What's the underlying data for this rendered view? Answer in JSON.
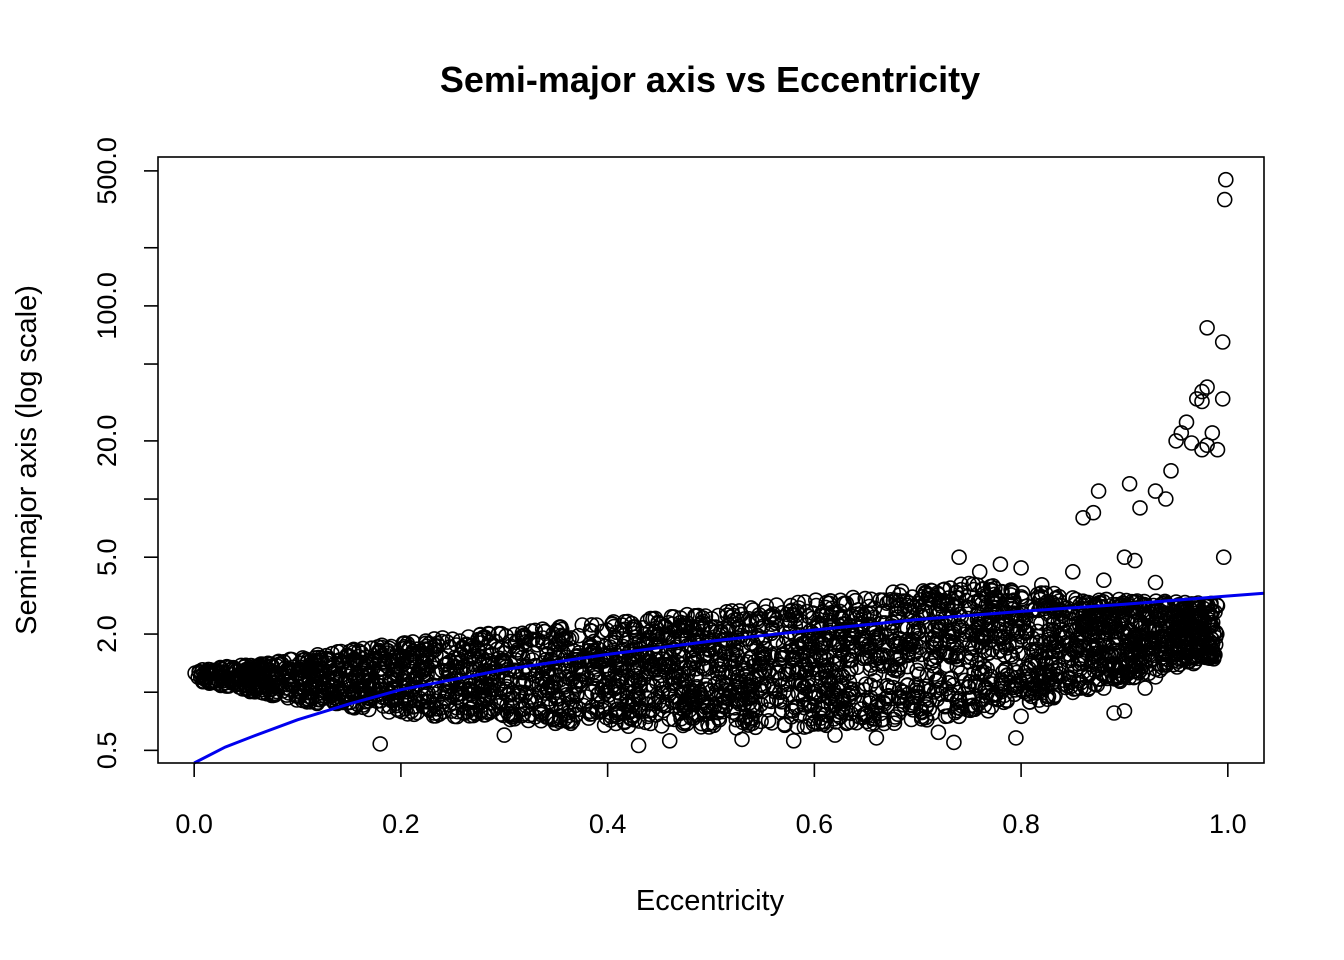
{
  "chart_data": {
    "type": "scatter",
    "title": "Semi-major axis vs Eccentricity",
    "xlabel": "Eccentricity",
    "ylabel": "Semi-major axis (log scale)",
    "x_scale": "linear",
    "y_scale": "log",
    "xlim": [
      -0.035,
      1.035
    ],
    "ylim": [
      0.43,
      590
    ],
    "x_ticks": [
      0.0,
      0.2,
      0.4,
      0.6,
      0.8,
      1.0
    ],
    "x_tick_labels": [
      "0.0",
      "0.2",
      "0.4",
      "0.6",
      "0.8",
      "1.0"
    ],
    "y_ticks": [
      0.5,
      1,
      2,
      5,
      10,
      20,
      50,
      100,
      200,
      500
    ],
    "y_tick_labels": [
      "0.5",
      "",
      "2.0",
      "5.0",
      "",
      "20.0",
      "",
      "100.0",
      "",
      "500.0"
    ],
    "grid": false,
    "point_color": "#000000",
    "fit_color": "#0000ee",
    "series": [
      {
        "points": [
          [
            0.18,
            0.54
          ],
          [
            0.155,
            0.83
          ],
          [
            0.3,
            0.6
          ],
          [
            0.43,
            0.53
          ],
          [
            0.46,
            0.56
          ],
          [
            0.53,
            0.57
          ],
          [
            0.58,
            0.56
          ],
          [
            0.6,
            0.7
          ],
          [
            0.62,
            0.6
          ],
          [
            0.66,
            0.58
          ],
          [
            0.72,
            0.62
          ],
          [
            0.735,
            0.55
          ],
          [
            0.74,
            0.75
          ],
          [
            0.795,
            0.58
          ],
          [
            0.8,
            0.75
          ],
          [
            0.82,
            0.85
          ],
          [
            0.88,
            1.05
          ],
          [
            0.89,
            0.78
          ],
          [
            0.9,
            0.8
          ],
          [
            0.91,
            1.2
          ],
          [
            0.92,
            1.05
          ],
          [
            0.93,
            1.2
          ],
          [
            0.74,
            5.0
          ],
          [
            0.76,
            4.2
          ],
          [
            0.78,
            4.6
          ],
          [
            0.8,
            4.4
          ],
          [
            0.82,
            3.6
          ],
          [
            0.85,
            4.2
          ],
          [
            0.86,
            8.0
          ],
          [
            0.87,
            8.5
          ],
          [
            0.875,
            11.0
          ],
          [
            0.88,
            3.8
          ],
          [
            0.9,
            5.0
          ],
          [
            0.905,
            12.0
          ],
          [
            0.91,
            4.8
          ],
          [
            0.915,
            9.0
          ],
          [
            0.93,
            3.7
          ],
          [
            0.93,
            11.0
          ],
          [
            0.94,
            10.0
          ],
          [
            0.945,
            14.0
          ],
          [
            0.95,
            20.0
          ],
          [
            0.955,
            22.0
          ],
          [
            0.96,
            25.0
          ],
          [
            0.965,
            19.5
          ],
          [
            0.975,
            18.0
          ],
          [
            0.98,
            19.0
          ],
          [
            0.985,
            22.0
          ],
          [
            0.99,
            18.0
          ],
          [
            0.97,
            33.0
          ],
          [
            0.975,
            36.0
          ],
          [
            0.98,
            38.0
          ],
          [
            0.975,
            32.0
          ],
          [
            0.995,
            33.0
          ],
          [
            0.98,
            77.0
          ],
          [
            0.995,
            65.0
          ],
          [
            0.997,
            355.0
          ],
          [
            0.998,
            450.0
          ],
          [
            0.996,
            5.0
          ],
          [
            0.99,
            2.8
          ],
          [
            0.985,
            2.6
          ],
          [
            0.975,
            2.4
          ],
          [
            0.97,
            1.9
          ],
          [
            0.96,
            2.0
          ]
        ]
      }
    ],
    "cloud": {
      "x_range": [
        0.0,
        0.99
      ],
      "lower": [
        [
          0.0,
          1.15
        ],
        [
          0.1,
          0.9
        ],
        [
          0.2,
          0.77
        ],
        [
          0.3,
          0.71
        ],
        [
          0.4,
          0.67
        ],
        [
          0.5,
          0.65
        ],
        [
          0.6,
          0.66
        ],
        [
          0.7,
          0.7
        ],
        [
          0.8,
          0.85
        ],
        [
          0.9,
          1.15
        ],
        [
          0.99,
          1.5
        ]
      ],
      "upper": [
        [
          0.0,
          1.3
        ],
        [
          0.1,
          1.5
        ],
        [
          0.2,
          1.85
        ],
        [
          0.3,
          2.05
        ],
        [
          0.4,
          2.3
        ],
        [
          0.5,
          2.6
        ],
        [
          0.6,
          3.0
        ],
        [
          0.7,
          3.4
        ],
        [
          0.75,
          3.7
        ],
        [
          0.8,
          3.4
        ],
        [
          0.9,
          3.0
        ],
        [
          0.99,
          2.9
        ]
      ]
    },
    "fit": {
      "label": "",
      "curve": [
        [
          0.0,
          0.43
        ],
        [
          0.03,
          0.52
        ],
        [
          0.06,
          0.6
        ],
        [
          0.1,
          0.72
        ],
        [
          0.15,
          0.87
        ],
        [
          0.2,
          1.03
        ],
        [
          0.3,
          1.31
        ],
        [
          0.4,
          1.57
        ],
        [
          0.5,
          1.84
        ],
        [
          0.6,
          2.1
        ],
        [
          0.7,
          2.38
        ],
        [
          0.8,
          2.62
        ],
        [
          0.9,
          2.85
        ],
        [
          1.0,
          3.15
        ],
        [
          1.035,
          3.25
        ]
      ]
    }
  }
}
